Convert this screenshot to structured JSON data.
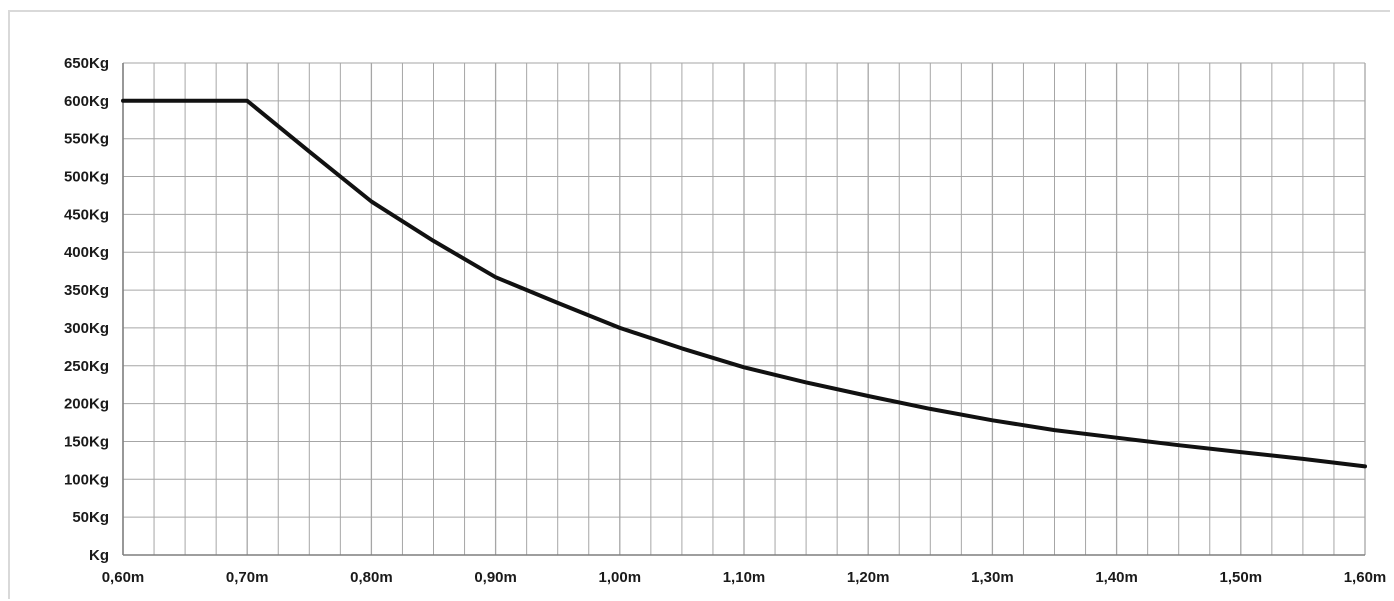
{
  "chart_data": {
    "type": "line",
    "title": "",
    "xlabel": "",
    "ylabel": "",
    "xlim": [
      0.6,
      1.6
    ],
    "ylim": [
      0,
      650
    ],
    "grid": true,
    "x_tick_values": [
      0.6,
      0.7,
      0.8,
      0.9,
      1.0,
      1.1,
      1.2,
      1.3,
      1.4,
      1.5,
      1.6
    ],
    "x_tick_labels": [
      "0,60m",
      "0,70m",
      "0,80m",
      "0,90m",
      "1,00m",
      "1,10m",
      "1,20m",
      "1,30m",
      "1,40m",
      "1,50m",
      "1,60m"
    ],
    "y_tick_values": [
      0,
      50,
      100,
      150,
      200,
      250,
      300,
      350,
      400,
      450,
      500,
      550,
      600,
      650
    ],
    "y_tick_labels": [
      "Kg",
      "50Kg",
      "100Kg",
      "150Kg",
      "200Kg",
      "250Kg",
      "300Kg",
      "350Kg",
      "400Kg",
      "450Kg",
      "500Kg",
      "550Kg",
      "600Kg",
      "650Kg"
    ],
    "line_color": "#111111",
    "grid_color": "#a6a6a6",
    "series": [
      {
        "x": [
          0.6,
          0.7,
          0.75,
          0.8,
          0.85,
          0.9,
          0.95,
          1.0,
          1.05,
          1.1,
          1.15,
          1.2,
          1.25,
          1.3,
          1.35,
          1.4,
          1.45,
          1.5,
          1.55,
          1.6
        ],
        "y": [
          600,
          600,
          533,
          467,
          415,
          367,
          333,
          300,
          273,
          248,
          228,
          210,
          193,
          178,
          165,
          155,
          145,
          136,
          127,
          117
        ]
      }
    ]
  }
}
